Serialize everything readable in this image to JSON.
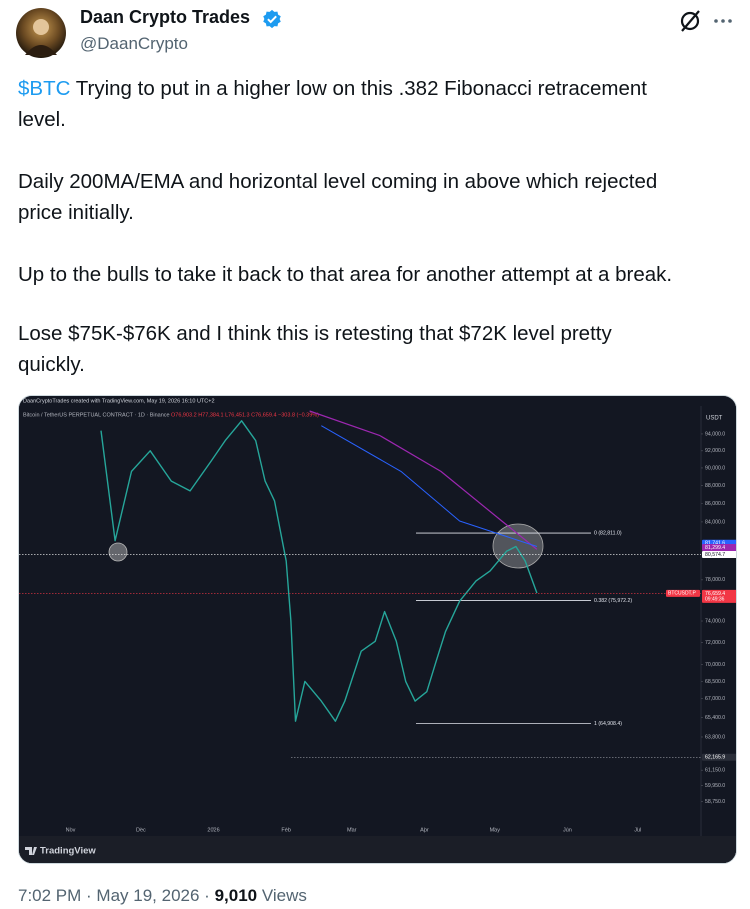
{
  "tweet": {
    "author_name": "Daan Crypto Trades",
    "handle": "@DaanCrypto",
    "cashtag": "$BTC",
    "paragraphs": [
      [
        "Trying to put in a higher low on this .382 Fibonacci retracement",
        "level."
      ],
      [
        "Daily 200MA/EMA and horizontal level coming in above which rejected",
        "price initially."
      ],
      [
        "Up to the bulls to take it back to that area for another attempt at a break."
      ],
      [
        "Lose $75K-$76K and I think this is retesting that $72K level pretty",
        "quickly."
      ]
    ],
    "timestamp": "7:02 PM · May 19, 2026 ·",
    "views_count": "9,010",
    "views_label": "Views"
  },
  "chart_data": {
    "type": "line",
    "header": "DaanCryptoTrades created with TradingView.com, May 19, 2026 16:10 UTC+2",
    "legend_title": "Bitcoin / TetherUS PERPETUAL CONTRACT · 1D · Binance",
    "ohlc": "O76,903.2 H77,384.1 L76,451.3 C76,659.4 −303.8 (−0.39%)",
    "currency": "USDT",
    "brand": "TradingView",
    "log": true,
    "grid": false,
    "xlim": [
      -22,
      269
    ],
    "ylim": [
      57300,
      96800
    ],
    "xticks": [
      {
        "value": 0,
        "label": "Nov"
      },
      {
        "value": 30,
        "label": "Dec"
      },
      {
        "value": 61,
        "label": "2026"
      },
      {
        "value": 92,
        "label": "Feb"
      },
      {
        "value": 120,
        "label": "Mar"
      },
      {
        "value": 151,
        "label": "Apr"
      },
      {
        "value": 181,
        "label": "May"
      },
      {
        "value": 212,
        "label": "Jun"
      },
      {
        "value": 242,
        "label": "Jul"
      }
    ],
    "yticks": [
      {
        "value": 94000,
        "label": "94,000.0"
      },
      {
        "value": 92000,
        "label": "92,000.0"
      },
      {
        "value": 90000,
        "label": "90,000.0"
      },
      {
        "value": 88000,
        "label": "88,000.0"
      },
      {
        "value": 86000,
        "label": "86,000.0"
      },
      {
        "value": 84000,
        "label": "84,000.0"
      },
      {
        "value": 78000,
        "label": "78,000.0"
      },
      {
        "value": 74000,
        "label": "74,000.0"
      },
      {
        "value": 72000,
        "label": "72,000.0"
      },
      {
        "value": 70000,
        "label": "70,000.0"
      },
      {
        "value": 68500,
        "label": "68,500.0"
      },
      {
        "value": 67000,
        "label": "67,000.0"
      },
      {
        "value": 65400,
        "label": "65,400.0"
      },
      {
        "value": 63800,
        "label": "63,800.0"
      },
      {
        "value": 61150,
        "label": "61,150.0"
      },
      {
        "value": 59950,
        "label": "59,950.0"
      },
      {
        "value": 58750,
        "label": "58,750.0"
      }
    ],
    "series": [
      {
        "color": "#26a69a",
        "width": 1.4,
        "x": [
          13,
          19,
          26,
          34,
          43,
          51,
          60,
          66,
          73,
          79,
          83,
          87,
          92,
          94,
          96,
          100,
          107,
          113,
          117,
          124,
          130,
          134,
          139,
          143,
          147,
          152,
          156,
          160,
          166,
          173,
          179,
          186,
          190,
          194,
          199
        ],
        "values": [
          94400,
          82000,
          89600,
          92000,
          88500,
          87400,
          90800,
          93200,
          95600,
          93200,
          88500,
          86300,
          79900,
          74000,
          65100,
          68500,
          66800,
          65100,
          66800,
          71200,
          72100,
          74900,
          72100,
          68500,
          66800,
          67600,
          70300,
          73000,
          75900,
          77900,
          78900,
          80900,
          81400,
          79900,
          76700
        ]
      },
      {
        "color": "#9c27b0",
        "width": 1.2,
        "x": [
          102,
          132,
          158,
          184,
          199
        ],
        "values": [
          96800,
          93800,
          89600,
          84100,
          81100
        ]
      },
      {
        "color": "#2962ff",
        "width": 1.0,
        "x": [
          107,
          141,
          166,
          199
        ],
        "values": [
          95000,
          89600,
          84100,
          81400
        ]
      }
    ],
    "fib_levels": [
      {
        "label": "0 (82,811.0)",
        "value": 82811.0
      },
      {
        "label": "0.382 (75,972.2)",
        "value": 75972.2
      },
      {
        "label": "1 (64,908.4)",
        "value": 64908.4
      }
    ],
    "price_labels": [
      {
        "label": "81,741.6",
        "value": 81741.6,
        "color": "#2962ff"
      },
      {
        "label": "81,299.4",
        "value": 81299.4,
        "color": "#9c27b0"
      },
      {
        "label": "80,574.7",
        "value": 80574.7,
        "color": "#ffffff",
        "line": true
      },
      {
        "label": "76,659.4",
        "value": 76659.4,
        "color": "#f23645",
        "line": true,
        "tag": "BTCUSDT.P",
        "timer": "09:49:36"
      },
      {
        "label": "62,165.9",
        "value": 62165.9,
        "color": "#2a2e39",
        "line": true
      }
    ]
  }
}
